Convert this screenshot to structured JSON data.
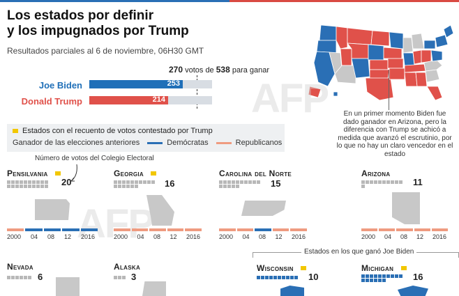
{
  "title_line1": "Los estados por definir",
  "title_line2": "y los impugnados por Trump",
  "subtitle": "Resultados parciales al 6 de noviembre, 06H30 GMT",
  "to_win": {
    "votes": "270",
    "text1": "votos de",
    "total": "538",
    "text2": "para ganar"
  },
  "candidates": [
    {
      "name": "Joe Biden",
      "votes": "253",
      "value": 253,
      "color": "#1f6fb8"
    },
    {
      "name": "Donald Trump",
      "votes": "214",
      "value": 214,
      "color": "#e0514a"
    }
  ],
  "legend": {
    "contested": "Estados con el recuento de votos contestado por Trump",
    "previous_winner": "Ganador de las elecciones anteriores",
    "democrats": "Demócratas",
    "republicans": "Republicanos"
  },
  "annotation": "En un primer momento Biden fue dado ganador en Arizona, pero la diferencia con Trump se achicó a medida que avanzó el escrutinio, por lo que no hay un claro vencedor en el estado",
  "ev_note": "Número de votos del Colegio Electoral",
  "biden_states_note": "Estados en los que ganó Joe Biden",
  "watermark": "AFP",
  "years": [
    "2000",
    "04",
    "08",
    "12",
    "2016"
  ],
  "states": {
    "pennsylvania": {
      "name": "Pensilvania",
      "ev": "20"
    },
    "georgia": {
      "name": "Georgia",
      "ev": "16"
    },
    "north_carolina": {
      "name": "Carolina del Norte",
      "ev": "15"
    },
    "arizona": {
      "name": "Arizona",
      "ev": "11"
    },
    "nevada": {
      "name": "Nevada",
      "ev": "6"
    },
    "alaska": {
      "name": "Alaska",
      "ev": "3"
    },
    "wisconsin": {
      "name": "Wisconsin",
      "ev": "10"
    },
    "michigan": {
      "name": "Michigan",
      "ev": "16"
    }
  }
}
